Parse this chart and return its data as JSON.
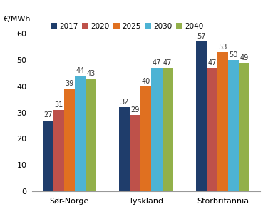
{
  "categories": [
    "Sør-Norge",
    "Tyskland",
    "Storbritannia"
  ],
  "series": [
    {
      "label": "2017",
      "values": [
        27,
        32,
        57
      ],
      "color": "#1F3D6B"
    },
    {
      "label": "2020",
      "values": [
        31,
        29,
        47
      ],
      "color": "#BE514A"
    },
    {
      "label": "2025",
      "values": [
        39,
        40,
        53
      ],
      "color": "#E07020"
    },
    {
      "label": "2030",
      "values": [
        44,
        47,
        50
      ],
      "color": "#4DB3D4"
    },
    {
      "label": "2040",
      "values": [
        43,
        47,
        49
      ],
      "color": "#92B04A"
    }
  ],
  "ylabel": "€/MWh",
  "ylim": [
    0,
    63
  ],
  "yticks": [
    0,
    10,
    20,
    30,
    40,
    50,
    60
  ],
  "bar_width": 0.14,
  "tick_fontsize": 8,
  "legend_fontsize": 7.5,
  "value_fontsize": 7
}
